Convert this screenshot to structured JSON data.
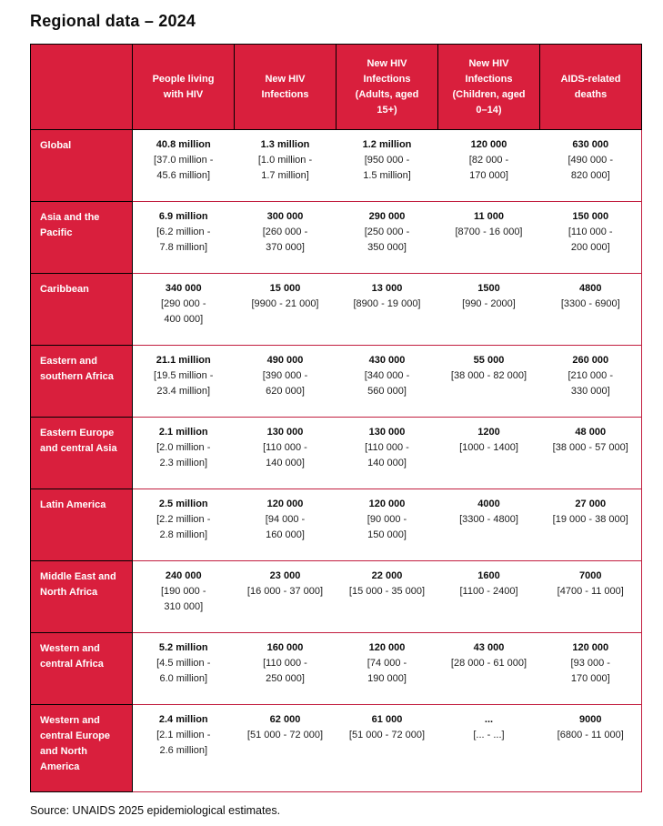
{
  "title": "Regional data – 2024",
  "source": "Source: UNAIDS 2025 epidemiological estimates.",
  "colors": {
    "brand_red": "#D91F3D",
    "border_red": "#C21E3F",
    "border_black": "#000000"
  },
  "table": {
    "columns": [
      "People living with HIV",
      "New HIV Infections",
      "New HIV Infections (Adults, aged 15+)",
      "New HIV Infections (Children, aged 0–14)",
      "AIDS-related deaths"
    ],
    "rows": [
      {
        "region": "Global",
        "cells": [
          {
            "value": "40.8 million",
            "range": "[37.0 million - 45.6 million]"
          },
          {
            "value": "1.3 million",
            "range": "[1.0 million - 1.7 million]"
          },
          {
            "value": "1.2 million",
            "range": "[950 000 - 1.5 million]"
          },
          {
            "value": "120 000",
            "range": "[82 000 - 170 000]"
          },
          {
            "value": "630 000",
            "range": "[490 000 - 820 000]"
          }
        ]
      },
      {
        "region": "Asia and the Pacific",
        "cells": [
          {
            "value": "6.9 million",
            "range": "[6.2 million - 7.8 million]"
          },
          {
            "value": "300 000",
            "range": "[260 000 - 370 000]"
          },
          {
            "value": "290 000",
            "range": "[250 000 - 350 000]"
          },
          {
            "value": "11 000",
            "range": "[8700 - 16 000]"
          },
          {
            "value": "150 000",
            "range": "[110 000 - 200 000]"
          }
        ]
      },
      {
        "region": "Caribbean",
        "cells": [
          {
            "value": "340 000",
            "range": "[290 000 - 400 000]"
          },
          {
            "value": "15 000",
            "range": "[9900 - 21 000]"
          },
          {
            "value": "13 000",
            "range": "[8900 - 19 000]"
          },
          {
            "value": "1500",
            "range": "[990 - 2000]"
          },
          {
            "value": "4800",
            "range": "[3300 - 6900]"
          }
        ]
      },
      {
        "region": "Eastern and southern Africa",
        "cells": [
          {
            "value": "21.1 million",
            "range": "[19.5 million - 23.4 million]"
          },
          {
            "value": "490 000",
            "range": "[390 000 - 620 000]"
          },
          {
            "value": "430 000",
            "range": "[340 000 - 560 000]"
          },
          {
            "value": "55 000",
            "range": "[38 000 - 82 000]"
          },
          {
            "value": "260 000",
            "range": "[210 000 - 330 000]"
          }
        ]
      },
      {
        "region": "Eastern Europe and central Asia",
        "cells": [
          {
            "value": "2.1 million",
            "range": "[2.0 million - 2.3 million]"
          },
          {
            "value": "130 000",
            "range": "[110 000 - 140 000]"
          },
          {
            "value": "130 000",
            "range": "[110 000 - 140 000]"
          },
          {
            "value": "1200",
            "range": "[1000 - 1400]"
          },
          {
            "value": "48 000",
            "range": "[38 000 - 57 000]"
          }
        ]
      },
      {
        "region": "Latin America",
        "cells": [
          {
            "value": "2.5 million",
            "range": "[2.2 million - 2.8 million]"
          },
          {
            "value": "120 000",
            "range": "[94 000 - 160 000]"
          },
          {
            "value": "120 000",
            "range": "[90 000 - 150 000]"
          },
          {
            "value": "4000",
            "range": "[3300 - 4800]"
          },
          {
            "value": "27 000",
            "range": "[19 000 - 38 000]"
          }
        ]
      },
      {
        "region": "Middle East and North Africa",
        "cells": [
          {
            "value": "240 000",
            "range": "[190 000 - 310 000]"
          },
          {
            "value": "23 000",
            "range": "[16 000 - 37 000]"
          },
          {
            "value": "22 000",
            "range": "[15 000 - 35 000]"
          },
          {
            "value": "1600",
            "range": "[1100 - 2400]"
          },
          {
            "value": "7000",
            "range": "[4700 - 11 000]"
          }
        ]
      },
      {
        "region": "Western and central Africa",
        "cells": [
          {
            "value": "5.2 million",
            "range": "[4.5 million - 6.0 million]"
          },
          {
            "value": "160 000",
            "range": "[110 000 - 250 000]"
          },
          {
            "value": "120 000",
            "range": "[74 000 - 190 000]"
          },
          {
            "value": "43 000",
            "range": "[28 000 - 61 000]"
          },
          {
            "value": "120 000",
            "range": "[93 000 - 170 000]"
          }
        ]
      },
      {
        "region": "Western and central Europe and North America",
        "cells": [
          {
            "value": "2.4 million",
            "range": "[2.1 million - 2.6 million]"
          },
          {
            "value": "62 000",
            "range": "[51 000 - 72 000]"
          },
          {
            "value": "61 000",
            "range": "[51 000 - 72 000]"
          },
          {
            "value": "...",
            "range": "[... - ...]"
          },
          {
            "value": "9000",
            "range": "[6800 - 11 000]"
          }
        ]
      }
    ]
  }
}
